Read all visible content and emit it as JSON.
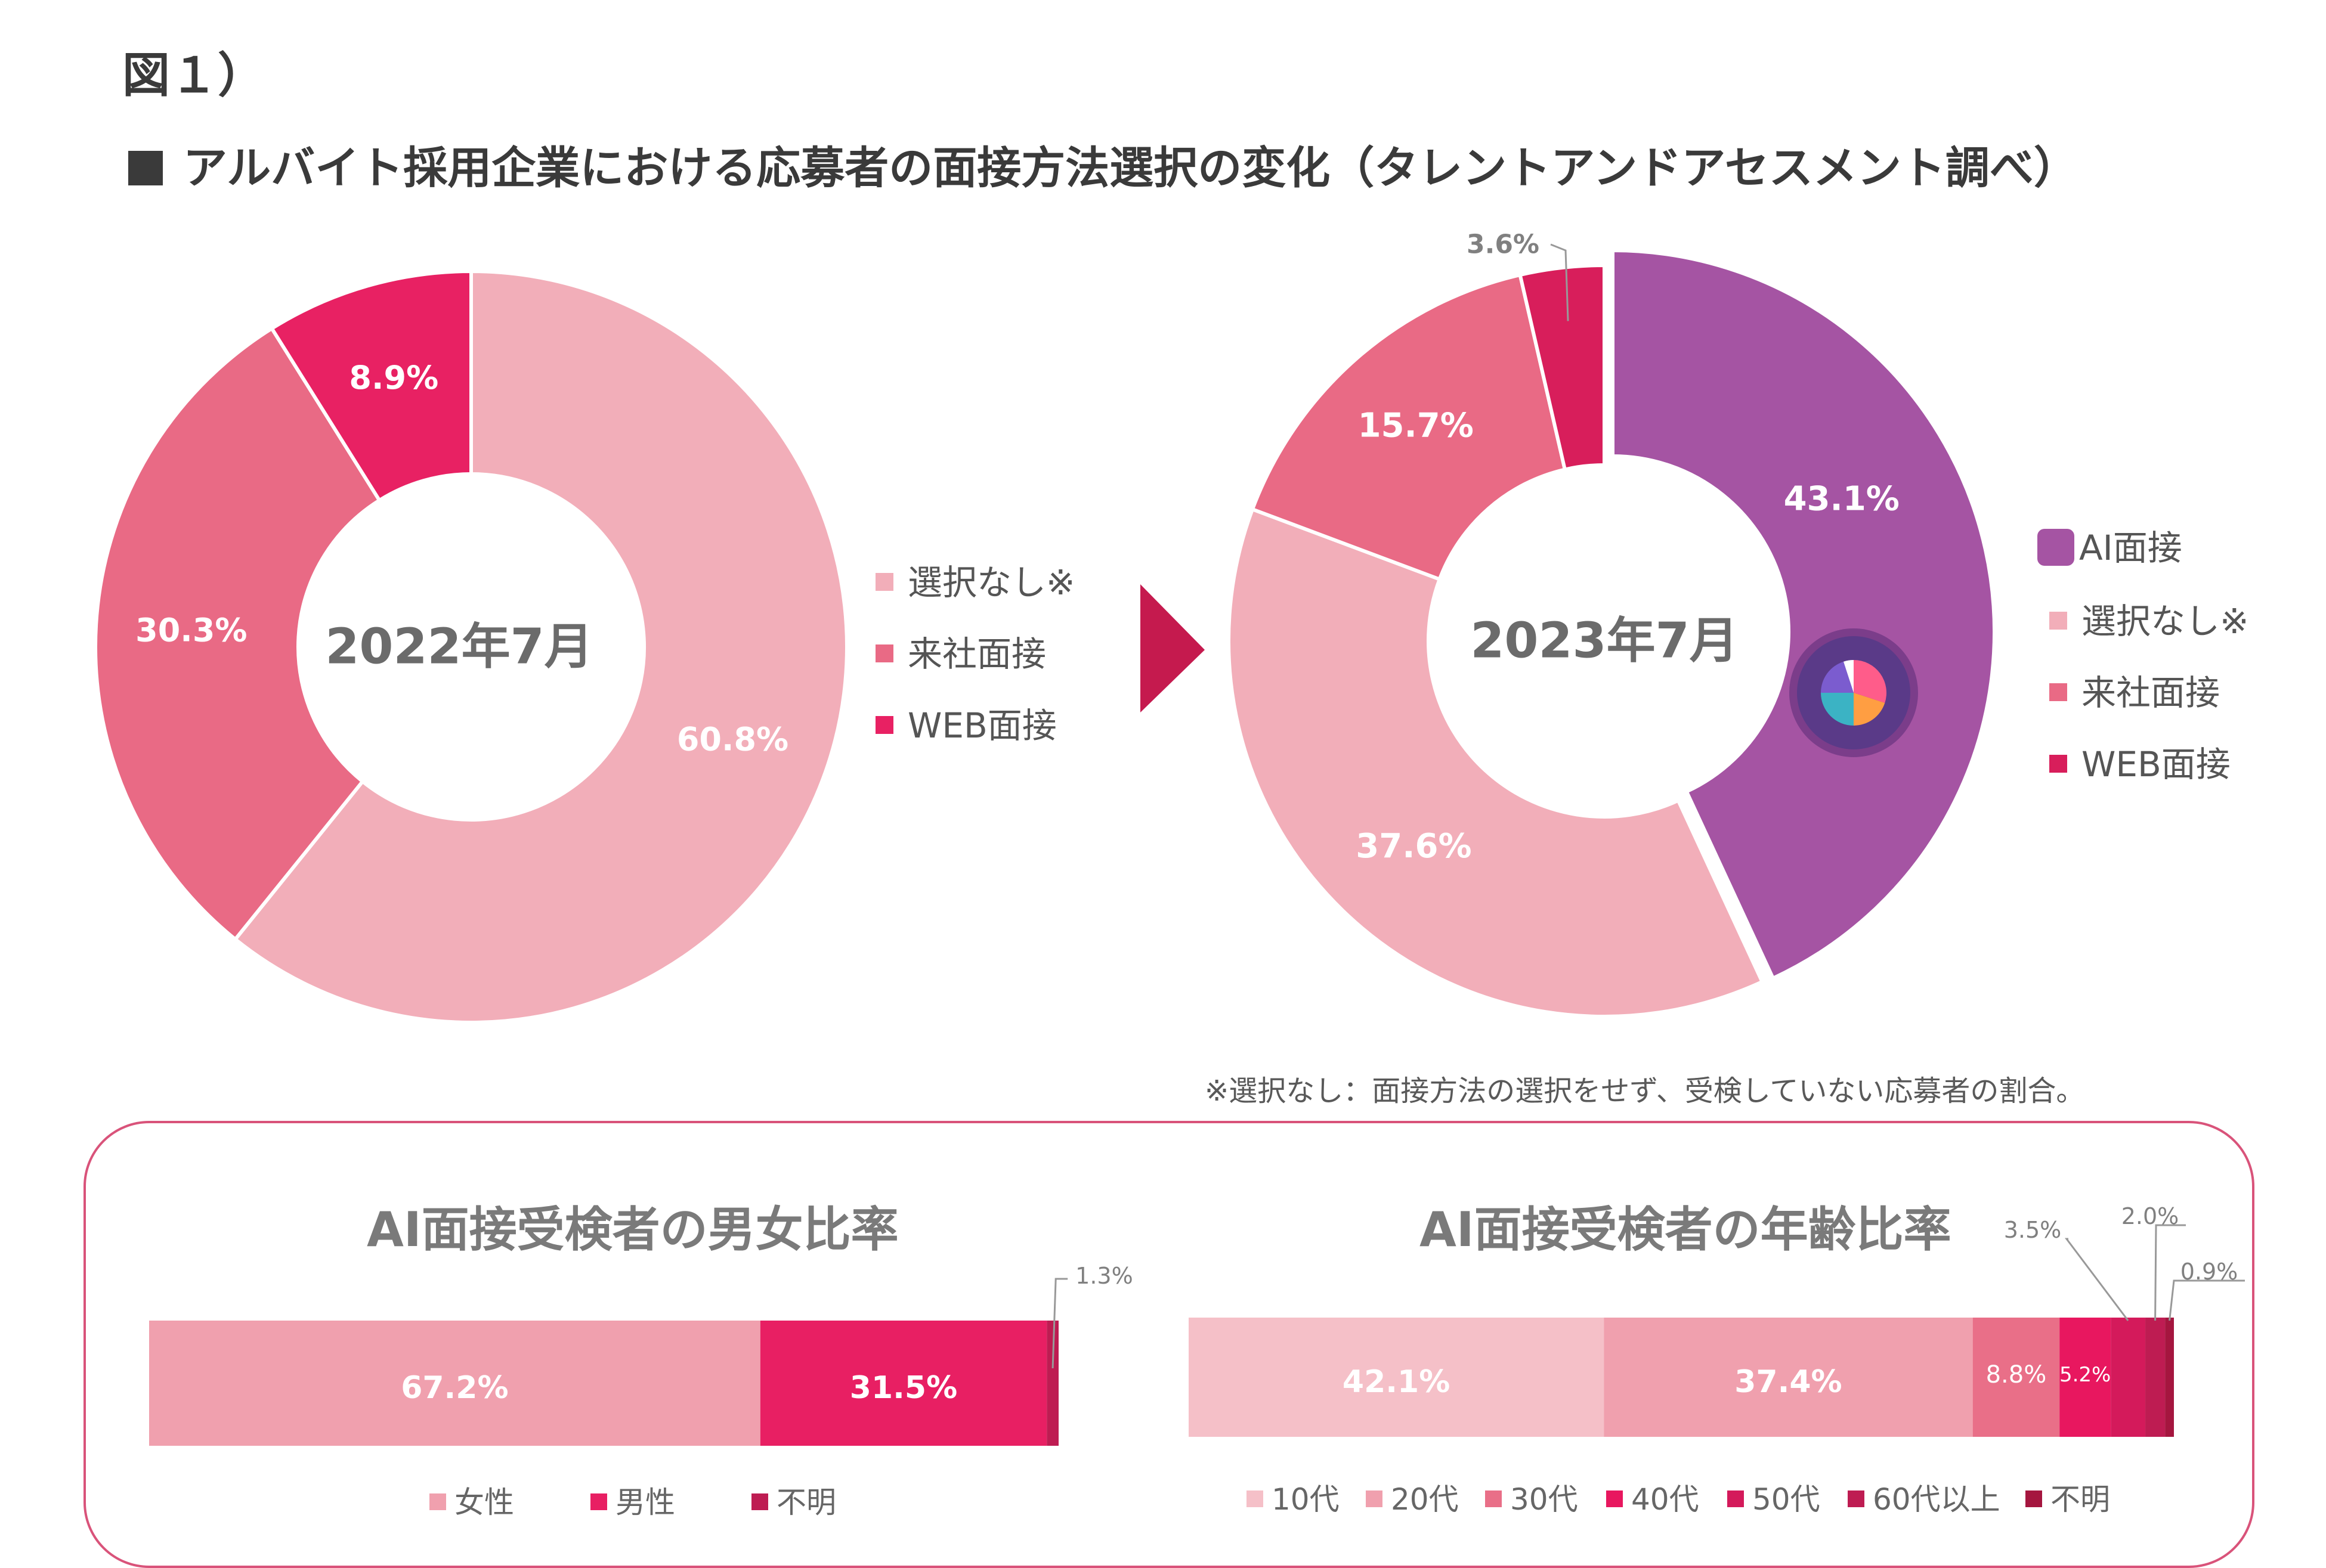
{
  "header": {
    "figure_label": "図１）",
    "title": "アルバイト採用企業における応募者の面接方法選択の変化（タレントアンドアセスメント調べ）"
  },
  "chart_data": [
    {
      "type": "pie",
      "center_label": "2022年7月",
      "categories": [
        "選択なし※",
        "来社面接",
        "WEB面接"
      ],
      "values": [
        60.8,
        30.3,
        8.9
      ],
      "labels": [
        "60.8%",
        "30.3%",
        "8.9%"
      ],
      "colors": [
        "#f2aeb9",
        "#e96a85",
        "#e82163"
      ],
      "legend": [
        "選択なし※",
        "来社面接",
        "WEB面接"
      ],
      "legend_placement": "right"
    },
    {
      "type": "pie",
      "center_label": "2023年7月",
      "categories": [
        "AI面接",
        "選択なし※",
        "来社面接",
        "WEB面接"
      ],
      "values": [
        43.1,
        37.6,
        15.7,
        3.6
      ],
      "labels": [
        "43.1%",
        "37.6%",
        "15.7%",
        "3.6%"
      ],
      "colors": [
        "#a554a3",
        "#f2aeb9",
        "#e96a85",
        "#d81e5b"
      ],
      "legend": [
        "AI面接",
        "選択なし※",
        "来社面接",
        "WEB面接"
      ],
      "legend_placement": "right"
    },
    {
      "type": "bar",
      "title": "AI面接受検者の男女比率",
      "orientation": "horizontal-stacked",
      "categories": [
        "女性",
        "男性",
        "不明"
      ],
      "values": [
        67.2,
        31.5,
        1.3
      ],
      "labels": [
        "67.2%",
        "31.5%",
        "1.3%"
      ],
      "colors": [
        "#f0a0ae",
        "#e81f63",
        "#be1c52"
      ],
      "legend": [
        "女性",
        "男性",
        "不明"
      ],
      "legend_placement": "bottom"
    },
    {
      "type": "bar",
      "title": "AI面接受検者の年齢比率",
      "orientation": "horizontal-stacked",
      "categories": [
        "10代",
        "20代",
        "30代",
        "40代",
        "50代",
        "60代以上",
        "不明"
      ],
      "values": [
        42.1,
        37.4,
        8.8,
        5.2,
        3.5,
        2.0,
        0.9
      ],
      "labels": [
        "42.1%",
        "37.4%",
        "8.8%",
        "5.2%",
        "3.5%",
        "2.0%",
        "0.9%"
      ],
      "colors": [
        "#f5c0c8",
        "#f0a0ae",
        "#e96f88",
        "#e8175f",
        "#d41a5b",
        "#be1c52",
        "#a5163f"
      ],
      "legend": [
        "10代",
        "20代",
        "30代",
        "40代",
        "50代",
        "60代以上",
        "不明"
      ],
      "legend_placement": "bottom"
    }
  ],
  "footnote": "※選択なし：面接方法の選択をせず、受検していない応募者の割合。",
  "arrow_color": "#c51a4e",
  "panel_border_color": "#d9537a"
}
